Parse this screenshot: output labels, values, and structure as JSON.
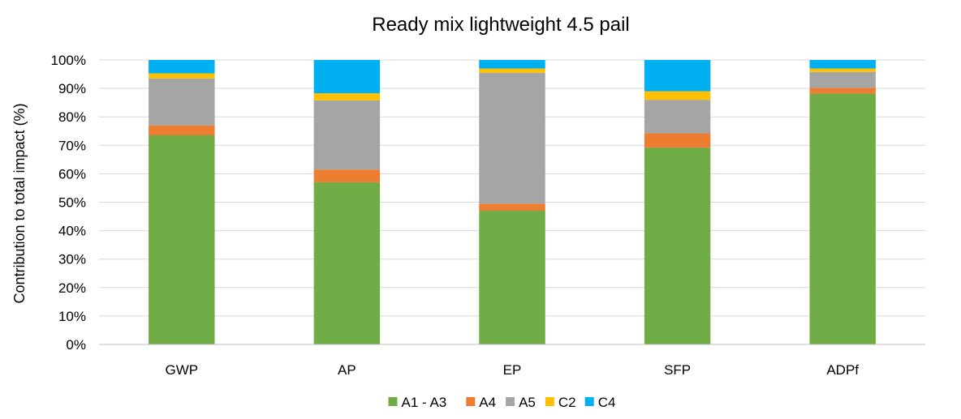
{
  "chart_data": {
    "type": "bar",
    "stacked": true,
    "title": "Ready mix lightweight 4.5 pail",
    "xlabel": "",
    "ylabel": "Contribution to total impact (%)",
    "ylim": [
      0,
      100
    ],
    "yticks": [
      "0%",
      "10%",
      "20%",
      "30%",
      "40%",
      "50%",
      "60%",
      "70%",
      "80%",
      "90%",
      "100%"
    ],
    "grid": true,
    "legend_position": "bottom",
    "categories": [
      "GWP",
      "AP",
      "EP",
      "SFP",
      "ADPf"
    ],
    "series": [
      {
        "name": "A1 - A3",
        "color": "#70ad47",
        "values": [
          73.5,
          57.0,
          47.0,
          69.2,
          88.2
        ]
      },
      {
        "name": "A4",
        "color": "#ed7d31",
        "values": [
          3.5,
          4.5,
          2.5,
          5.0,
          2.0
        ]
      },
      {
        "name": "A5",
        "color": "#a5a5a5",
        "values": [
          16.5,
          24.3,
          46.0,
          11.8,
          5.6
        ]
      },
      {
        "name": "C2",
        "color": "#ffc000",
        "values": [
          1.8,
          2.5,
          1.5,
          3.0,
          1.2
        ]
      },
      {
        "name": "C4",
        "color": "#00b0f0",
        "values": [
          4.7,
          11.7,
          3.0,
          11.0,
          3.0
        ]
      }
    ]
  }
}
